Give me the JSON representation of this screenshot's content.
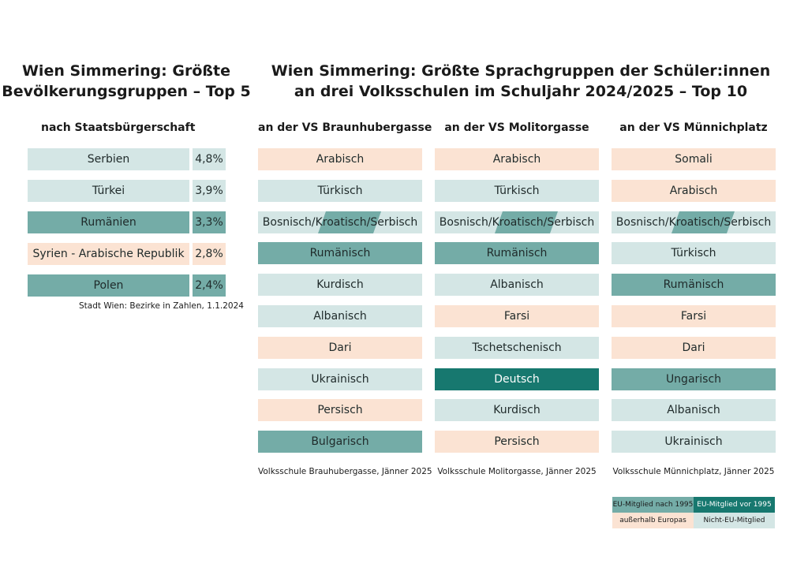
{
  "colors": {
    "eu_after_1995": "#74aca7",
    "eu_before_1995": "#17786f",
    "outside_europe": "#fbe3d3",
    "non_eu": "#d4e6e5"
  },
  "left": {
    "title_line1": "Wien Simmering: Größte",
    "title_line2": "Bevölkerungsgruppen – Top 5",
    "subtitle": "nach Staatsbürgerschaft",
    "source": "Stadt Wien: Bezirke in Zahlen, 1.1.2024"
  },
  "right": {
    "title_line1": "Wien Simmering: Größte Sprachgruppen der Schüler:innen",
    "title_line2": "an drei Volksschulen im Schuljahr 2024/2025 – Top 10"
  },
  "legend": {
    "eu_after_1995": "EU-Mitglied nach 1995",
    "eu_before_1995": "EU-Mitglied vor 1995",
    "outside_europe": "außerhalb Europas",
    "non_eu": "Nicht-EU-Mitglied"
  },
  "chart_data": [
    {
      "type": "table",
      "title": "Wien Simmering: Größte Bevölkerungsgruppen – Top 5",
      "subtitle": "nach Staatsbürgerschaft",
      "rows": [
        {
          "label": "Serbien",
          "value": "4,8%",
          "category": "non_eu"
        },
        {
          "label": "Türkei",
          "value": "3,9%",
          "category": "non_eu"
        },
        {
          "label": "Rumänien",
          "value": "3,3%",
          "category": "eu_after_1995"
        },
        {
          "label": "Syrien - Arabische Republik",
          "value": "2,8%",
          "category": "outside_europe"
        },
        {
          "label": "Polen",
          "value": "2,4%",
          "category": "eu_after_1995"
        }
      ],
      "source": "Stadt Wien: Bezirke in Zahlen, 1.1.2024"
    },
    {
      "type": "table",
      "title": "an der VS Braunhubergasse",
      "items": [
        {
          "label": "Arabisch",
          "category": "outside_europe"
        },
        {
          "label": "Türkisch",
          "category": "non_eu"
        },
        {
          "label": "Bosnisch/Kroatisch/Serbisch",
          "category": "non_eu",
          "highlight": "eu_after_1995"
        },
        {
          "label": "Rumänisch",
          "category": "eu_after_1995"
        },
        {
          "label": "Kurdisch",
          "category": "non_eu"
        },
        {
          "label": "Albanisch",
          "category": "non_eu"
        },
        {
          "label": "Dari",
          "category": "outside_europe"
        },
        {
          "label": "Ukrainisch",
          "category": "non_eu"
        },
        {
          "label": "Persisch",
          "category": "outside_europe"
        },
        {
          "label": "Bulgarisch",
          "category": "eu_after_1995"
        }
      ],
      "source": "Volksschule Brauhubergasse, Jänner 2025"
    },
    {
      "type": "table",
      "title": "an der VS Molitorgasse",
      "items": [
        {
          "label": "Arabisch",
          "category": "outside_europe"
        },
        {
          "label": "Türkisch",
          "category": "non_eu"
        },
        {
          "label": "Bosnisch/Kroatisch/Serbisch",
          "category": "non_eu",
          "highlight": "eu_after_1995"
        },
        {
          "label": "Rumänisch",
          "category": "eu_after_1995"
        },
        {
          "label": "Albanisch",
          "category": "non_eu"
        },
        {
          "label": "Farsi",
          "category": "outside_europe"
        },
        {
          "label": "Tschetschenisch",
          "category": "non_eu"
        },
        {
          "label": "Deutsch",
          "category": "eu_before_1995"
        },
        {
          "label": "Kurdisch",
          "category": "non_eu"
        },
        {
          "label": "Persisch",
          "category": "outside_europe"
        }
      ],
      "source": "Volksschule Molitorgasse, Jänner 2025"
    },
    {
      "type": "table",
      "title": "an der VS Münnichplatz",
      "items": [
        {
          "label": "Somali",
          "category": "outside_europe"
        },
        {
          "label": "Arabisch",
          "category": "outside_europe"
        },
        {
          "label": "Bosnisch/Kroatisch/Serbisch",
          "category": "non_eu",
          "highlight": "eu_after_1995"
        },
        {
          "label": "Türkisch",
          "category": "non_eu"
        },
        {
          "label": "Rumänisch",
          "category": "eu_after_1995"
        },
        {
          "label": "Farsi",
          "category": "outside_europe"
        },
        {
          "label": "Dari",
          "category": "outside_europe"
        },
        {
          "label": "Ungarisch",
          "category": "eu_after_1995"
        },
        {
          "label": "Albanisch",
          "category": "non_eu"
        },
        {
          "label": "Ukrainisch",
          "category": "non_eu"
        }
      ],
      "source": "Volksschule Münnichplatz, Jänner 2025"
    }
  ]
}
